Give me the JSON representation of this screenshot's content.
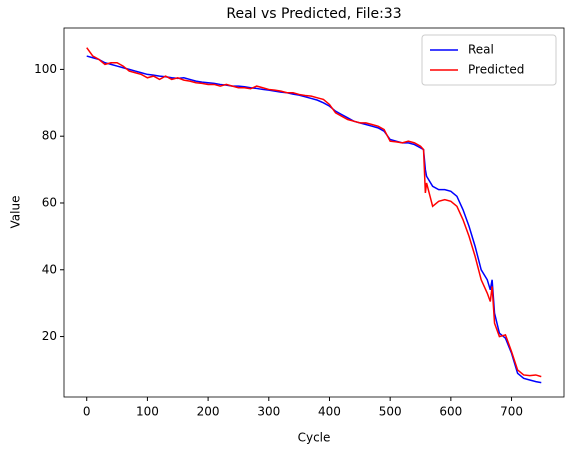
{
  "chart_data": {
    "type": "line",
    "title": "Real vs Predicted, File:33",
    "x_label": "Cycle",
    "y_label": "Value",
    "x": [
      0,
      10,
      20,
      30,
      40,
      50,
      60,
      70,
      80,
      90,
      100,
      110,
      120,
      130,
      140,
      150,
      160,
      170,
      180,
      190,
      200,
      210,
      220,
      230,
      240,
      250,
      260,
      270,
      280,
      290,
      300,
      310,
      320,
      330,
      340,
      350,
      360,
      370,
      380,
      390,
      400,
      410,
      420,
      430,
      440,
      450,
      460,
      470,
      480,
      490,
      500,
      510,
      520,
      530,
      540,
      550,
      555,
      558,
      560,
      570,
      580,
      590,
      600,
      610,
      620,
      630,
      640,
      650,
      660,
      665,
      668,
      672,
      680,
      690,
      700,
      710,
      720,
      730,
      740,
      749
    ],
    "series": [
      {
        "name": "Real",
        "color": "#0000ff",
        "values": [
          104,
          103.5,
          103,
          102,
          101.5,
          101,
          100.5,
          100,
          99.5,
          99,
          98.5,
          98.3,
          98,
          97.8,
          97.5,
          97.3,
          97.5,
          97,
          96.5,
          96.2,
          96,
          95.8,
          95.5,
          95.3,
          95,
          95,
          94.8,
          94.5,
          94.3,
          94,
          93.8,
          93.5,
          93.2,
          93,
          92.6,
          92.3,
          91.8,
          91.3,
          90.8,
          90,
          89,
          87.5,
          86.5,
          85.5,
          84.5,
          84,
          83.5,
          83,
          82.5,
          81.5,
          79,
          78.5,
          78,
          78,
          77.5,
          76.5,
          76,
          70,
          68,
          65,
          64,
          64,
          63.5,
          62,
          58,
          53,
          47,
          40,
          37,
          34,
          37,
          27,
          21,
          19.5,
          15,
          9,
          7.5,
          7,
          6.5,
          6.2
        ]
      },
      {
        "name": "Predicted",
        "color": "#ff0000",
        "values": [
          106.5,
          104,
          103,
          101.5,
          102,
          102,
          101,
          99.5,
          99,
          98.5,
          97.5,
          98,
          97,
          98,
          97,
          97.5,
          96.8,
          96.5,
          96,
          95.8,
          95.5,
          95.5,
          95,
          95.5,
          95,
          94.5,
          94.5,
          94.2,
          95,
          94.5,
          94,
          93.8,
          93.5,
          93,
          93,
          92.5,
          92.2,
          92,
          91.5,
          91,
          89.5,
          87,
          86,
          85,
          84.5,
          84,
          84,
          83.5,
          83,
          82,
          78.5,
          78.3,
          78,
          78.5,
          78,
          77,
          76,
          63,
          66,
          59,
          60.5,
          61,
          60.5,
          59,
          55,
          50,
          44,
          37,
          33,
          30.5,
          35,
          24,
          20,
          20.5,
          15.5,
          10,
          8.5,
          8.3,
          8.5,
          8
        ]
      }
    ],
    "xlim": [
      -37.45,
      786.45
    ],
    "ylim": [
      1.9,
      112.4
    ],
    "xticks": [
      0,
      100,
      200,
      300,
      400,
      500,
      600,
      700
    ],
    "yticks": [
      20,
      40,
      60,
      80,
      100
    ],
    "legend": "upper right"
  }
}
